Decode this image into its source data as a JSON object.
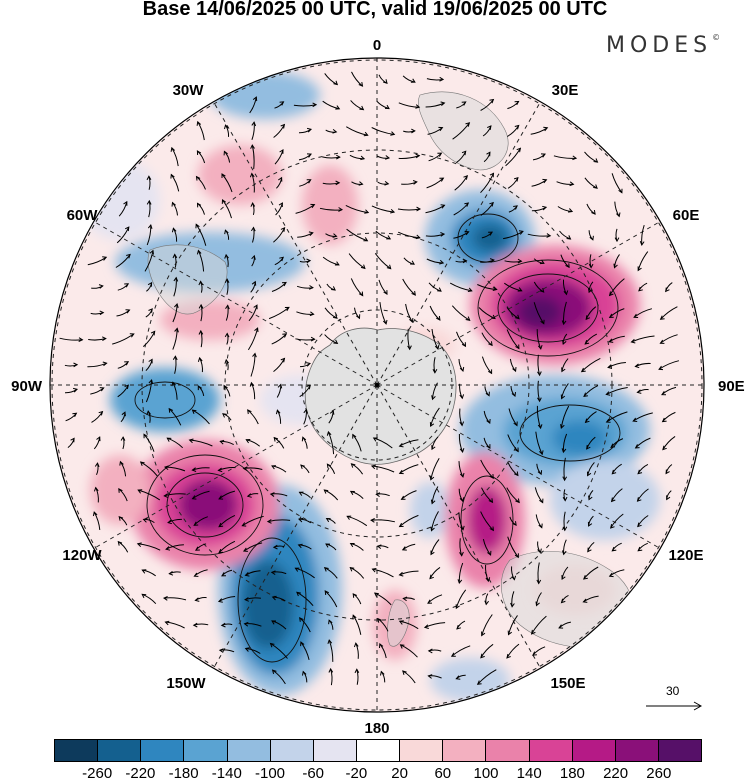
{
  "header": {
    "title": "Base 14/06/2025 00 UTC, valid 19/06/2025 00 UTC",
    "logo": "MODES",
    "logo_mark": "©"
  },
  "map": {
    "projection": "south-polar-stereographic",
    "longitude_labels": {
      "top": "0",
      "bottom": "180",
      "left": "90W",
      "right": "90E",
      "upper_left_1": "30W",
      "upper_left_2": "60W",
      "upper_right_1": "30E",
      "upper_right_2": "60E",
      "lower_left_1": "120W",
      "lower_left_2": "150W",
      "lower_right_1": "120E",
      "lower_right_2": "150E"
    },
    "reference_vector": {
      "value": "30"
    }
  },
  "colorbar": {
    "colors": [
      "#0d3a5c",
      "#14608f",
      "#2f86bf",
      "#5aa3d2",
      "#93bde0",
      "#c3d3ea",
      "#e5e4f1",
      "#ffffff",
      "#f9d9d9",
      "#f3b0c0",
      "#ea82aa",
      "#d94396",
      "#b51a86",
      "#8a1079",
      "#561068"
    ],
    "ticks": [
      "-260",
      "-220",
      "-180",
      "-140",
      "-100",
      "-60",
      "-20",
      "20",
      "60",
      "100",
      "140",
      "180",
      "220",
      "260"
    ]
  }
}
